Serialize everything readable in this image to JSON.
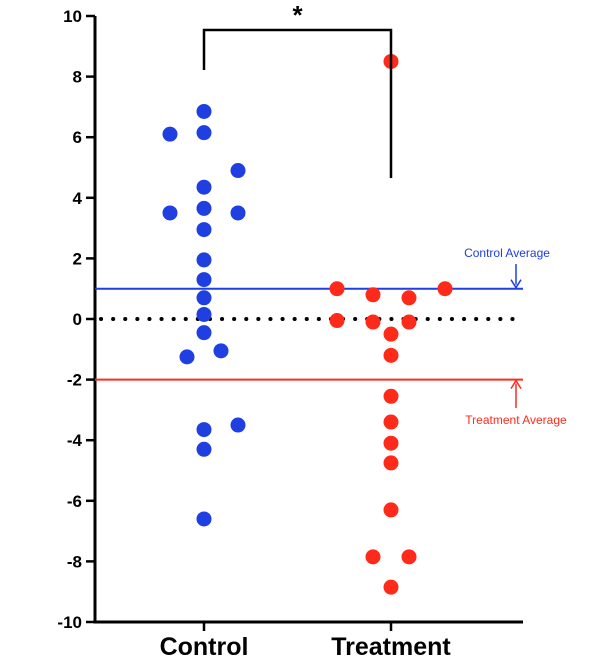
{
  "chart_data": {
    "type": "scatter",
    "title": "",
    "xlabel": "",
    "ylabel": "",
    "ylim": [
      -10,
      10
    ],
    "yticks": [
      10,
      8,
      6,
      4,
      2,
      0,
      -2,
      -4,
      -6,
      -8,
      -10
    ],
    "categories": [
      "Control",
      "Treatment"
    ],
    "series": [
      {
        "category": "Control",
        "color": "#1f3fe0",
        "values": [
          6.85,
          6.15,
          6.1,
          4.9,
          4.35,
          3.65,
          3.5,
          3.5,
          2.95,
          1.95,
          1.3,
          0.7,
          0.15,
          -0.45,
          -1.05,
          -1.25,
          -3.5,
          -3.65,
          -4.3,
          -6.6
        ]
      },
      {
        "category": "Treatment",
        "color": "#ff2a1a",
        "values": [
          8.5,
          1.0,
          1.0,
          0.8,
          0.7,
          -0.05,
          -0.1,
          -0.1,
          -0.5,
          -1.2,
          -2.55,
          -3.4,
          -4.1,
          -4.75,
          -6.3,
          -7.85,
          -7.85,
          -8.85
        ]
      }
    ],
    "zero_line": {
      "value": 0,
      "style": "dotted",
      "color": "#000000"
    },
    "reference_lines": [
      {
        "label": "Control Average",
        "value": 1.0,
        "color": "#1f3fe0"
      },
      {
        "label": "Treatment Average",
        "value": -2.0,
        "color": "#ff2a1a"
      }
    ],
    "significance": {
      "label": "*",
      "from": "Control",
      "to": "Treatment"
    }
  }
}
